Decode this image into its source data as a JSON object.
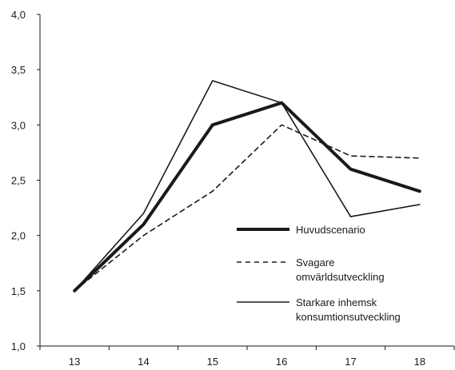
{
  "chart_data": {
    "type": "line",
    "title": "",
    "xlabel": "",
    "ylabel": "",
    "categories": [
      "13",
      "14",
      "15",
      "16",
      "17",
      "18"
    ],
    "ylim": [
      1.0,
      4.0
    ],
    "yticks": [
      "1,0",
      "1,5",
      "2,0",
      "2,5",
      "3,0",
      "3,5",
      "4,0"
    ],
    "grid": false,
    "legend_position": "inside-bottom-right",
    "series": [
      {
        "name": "Huvudscenario",
        "values": [
          1.5,
          2.1,
          3.0,
          3.2,
          2.6,
          2.4
        ],
        "style": "thick-solid",
        "color": "#1a1a1a"
      },
      {
        "name": "Svagare omvärldsutveckling",
        "values": [
          1.5,
          2.0,
          2.4,
          3.0,
          2.72,
          2.7
        ],
        "style": "dashed",
        "color": "#1a1a1a"
      },
      {
        "name": "Starkare inhemsk konsumtionsutveckling",
        "values": [
          1.5,
          2.2,
          3.4,
          3.2,
          2.17,
          2.28
        ],
        "style": "thin-solid",
        "color": "#1a1a1a"
      }
    ],
    "legend": [
      {
        "series": 0,
        "lines": [
          "Huvudscenario"
        ]
      },
      {
        "series": 1,
        "lines": [
          "Svagare",
          "omvärldsutveckling"
        ]
      },
      {
        "series": 2,
        "lines": [
          "Starkare inhemsk",
          "konsumtionsutveckling"
        ]
      }
    ]
  }
}
